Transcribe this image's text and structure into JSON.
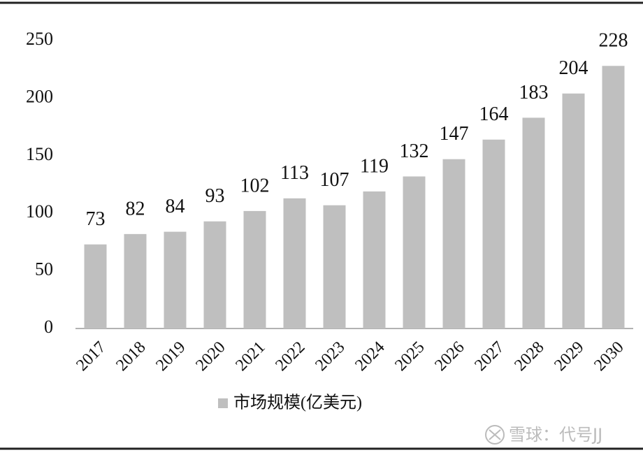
{
  "chart_data": {
    "type": "bar",
    "categories": [
      "2017",
      "2018",
      "2019",
      "2020",
      "2021",
      "2022",
      "2023",
      "2024",
      "2025",
      "2026",
      "2027",
      "2028",
      "2029",
      "2030"
    ],
    "series": [
      {
        "name": "市场规模(亿美元)",
        "color": "#bfbfbf",
        "values": [
          73,
          82,
          84,
          93,
          102,
          113,
          107,
          119,
          132,
          147,
          164,
          183,
          204,
          228
        ]
      }
    ],
    "ylim": [
      0,
      250
    ],
    "yticks": [
      0,
      50,
      100,
      150,
      200,
      250
    ],
    "grid": false,
    "data_labels": true,
    "legend": "bottom"
  },
  "watermark": "雪球：代号JJ"
}
